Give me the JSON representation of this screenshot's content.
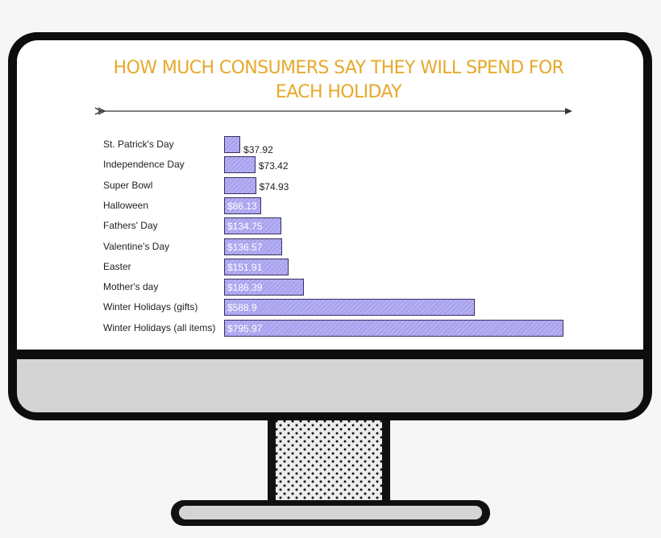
{
  "chart_data": {
    "type": "bar",
    "orientation": "horizontal",
    "title_lines": [
      "HOW MUCH CONSUMERS SAY THEY WILL SPEND FOR",
      "EACH HOLIDAY"
    ],
    "categories": [
      "St. Patrick's Day",
      "Independence Day",
      "Super Bowl",
      "Halloween",
      "Fathers' Day",
      "Valentine's Day",
      "Easter",
      "Mother's day",
      "Winter Holidays (gifts)",
      "Winter Holidays (all items)"
    ],
    "values": [
      37.92,
      73.42,
      74.93,
      86.13,
      134.75,
      136.57,
      151.91,
      186.39,
      588.9,
      795.97
    ],
    "value_labels": [
      "$37.92",
      "$73.42",
      "$74.93",
      "$86.13",
      "$134.75",
      "$136.57",
      "$151.91",
      "$186.39",
      "$588.9",
      "$795.97"
    ],
    "bar_color": "#a8a2ef",
    "xlim": [
      0,
      796
    ],
    "grid": false,
    "legend": "none"
  },
  "colors": {
    "title": "#e6a92b",
    "bezel": "#0d0d0d",
    "chin": "#d4d4d4",
    "screen": "#ffffff"
  }
}
